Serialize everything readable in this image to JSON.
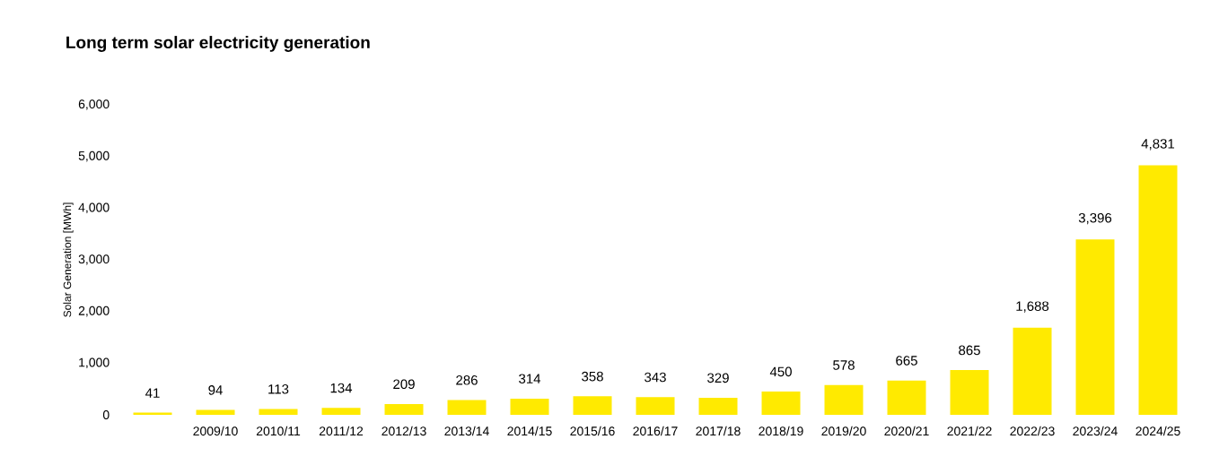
{
  "chart_data": {
    "type": "bar",
    "title": "Long term solar electricity generation",
    "ylabel": "Solar Generation [MWh]",
    "categories": [
      null,
      "2009/10",
      "2010/11",
      "2011/12",
      "2012/13",
      "2013/14",
      "2014/15",
      "2015/16",
      "2016/17",
      "2017/18",
      "2018/19",
      "2019/20",
      "2020/21",
      "2021/22",
      "2022/23",
      "2023/24",
      "2024/25"
    ],
    "values": [
      41,
      94,
      113,
      134,
      209,
      286,
      314,
      358,
      343,
      329,
      450,
      578,
      665,
      865,
      1688,
      3396,
      4831
    ],
    "value_labels": [
      "41",
      "94",
      "113",
      "134",
      "209",
      "286",
      "314",
      "358",
      "343",
      "329",
      "450",
      "578",
      "665",
      "865",
      "1,688",
      "3,396",
      "4,831"
    ],
    "color": "#ffea00",
    "ylim": [
      0,
      6000
    ],
    "yticks": [
      {
        "value": 0,
        "label": "0"
      },
      {
        "value": 1000,
        "label": "1,000"
      },
      {
        "value": 2000,
        "label": "2,000"
      },
      {
        "value": 3000,
        "label": "3,000"
      },
      {
        "value": 4000,
        "label": "4,000"
      },
      {
        "value": 5000,
        "label": "5,000"
      },
      {
        "value": 6000,
        "label": "6,000"
      }
    ],
    "grid": false
  }
}
